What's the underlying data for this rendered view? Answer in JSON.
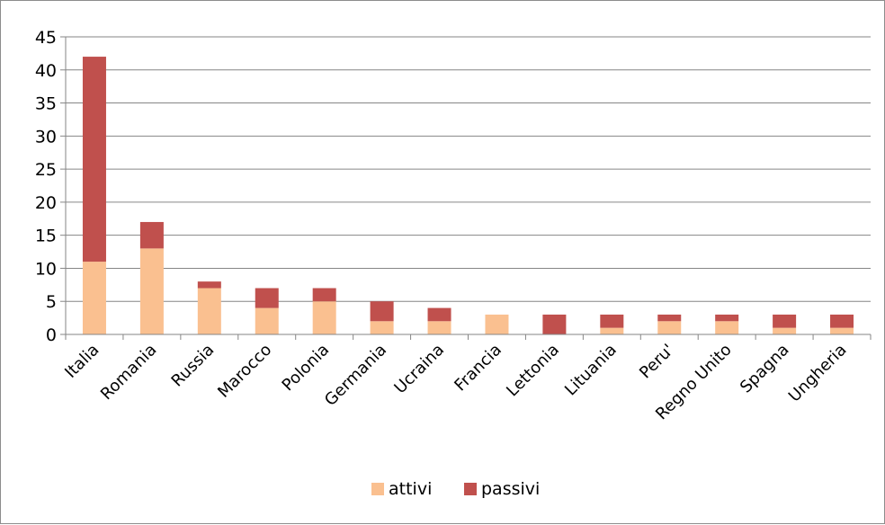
{
  "chart_data": {
    "type": "bar",
    "stacked": true,
    "categories": [
      "Italia",
      "Romania",
      "Russia",
      "Marocco",
      "Polonia",
      "Germania",
      "Ucraina",
      "Francia",
      "Lettonia",
      "Lituania",
      "Peru'",
      "Regno Unito",
      "Spagna",
      "Ungheria"
    ],
    "series": [
      {
        "name": "attivi",
        "color": "#FAC090",
        "values": [
          11,
          13,
          7,
          4,
          5,
          2,
          2,
          3,
          0,
          1,
          2,
          2,
          1,
          1
        ]
      },
      {
        "name": "passivi",
        "color": "#C0504D",
        "values": [
          31,
          4,
          1,
          3,
          2,
          3,
          2,
          0,
          3,
          2,
          1,
          1,
          2,
          2
        ]
      }
    ],
    "ylim": [
      0,
      45
    ],
    "yticks": [
      0,
      5,
      10,
      15,
      20,
      25,
      30,
      35,
      40,
      45
    ],
    "grid": true,
    "legend": "bottom"
  }
}
